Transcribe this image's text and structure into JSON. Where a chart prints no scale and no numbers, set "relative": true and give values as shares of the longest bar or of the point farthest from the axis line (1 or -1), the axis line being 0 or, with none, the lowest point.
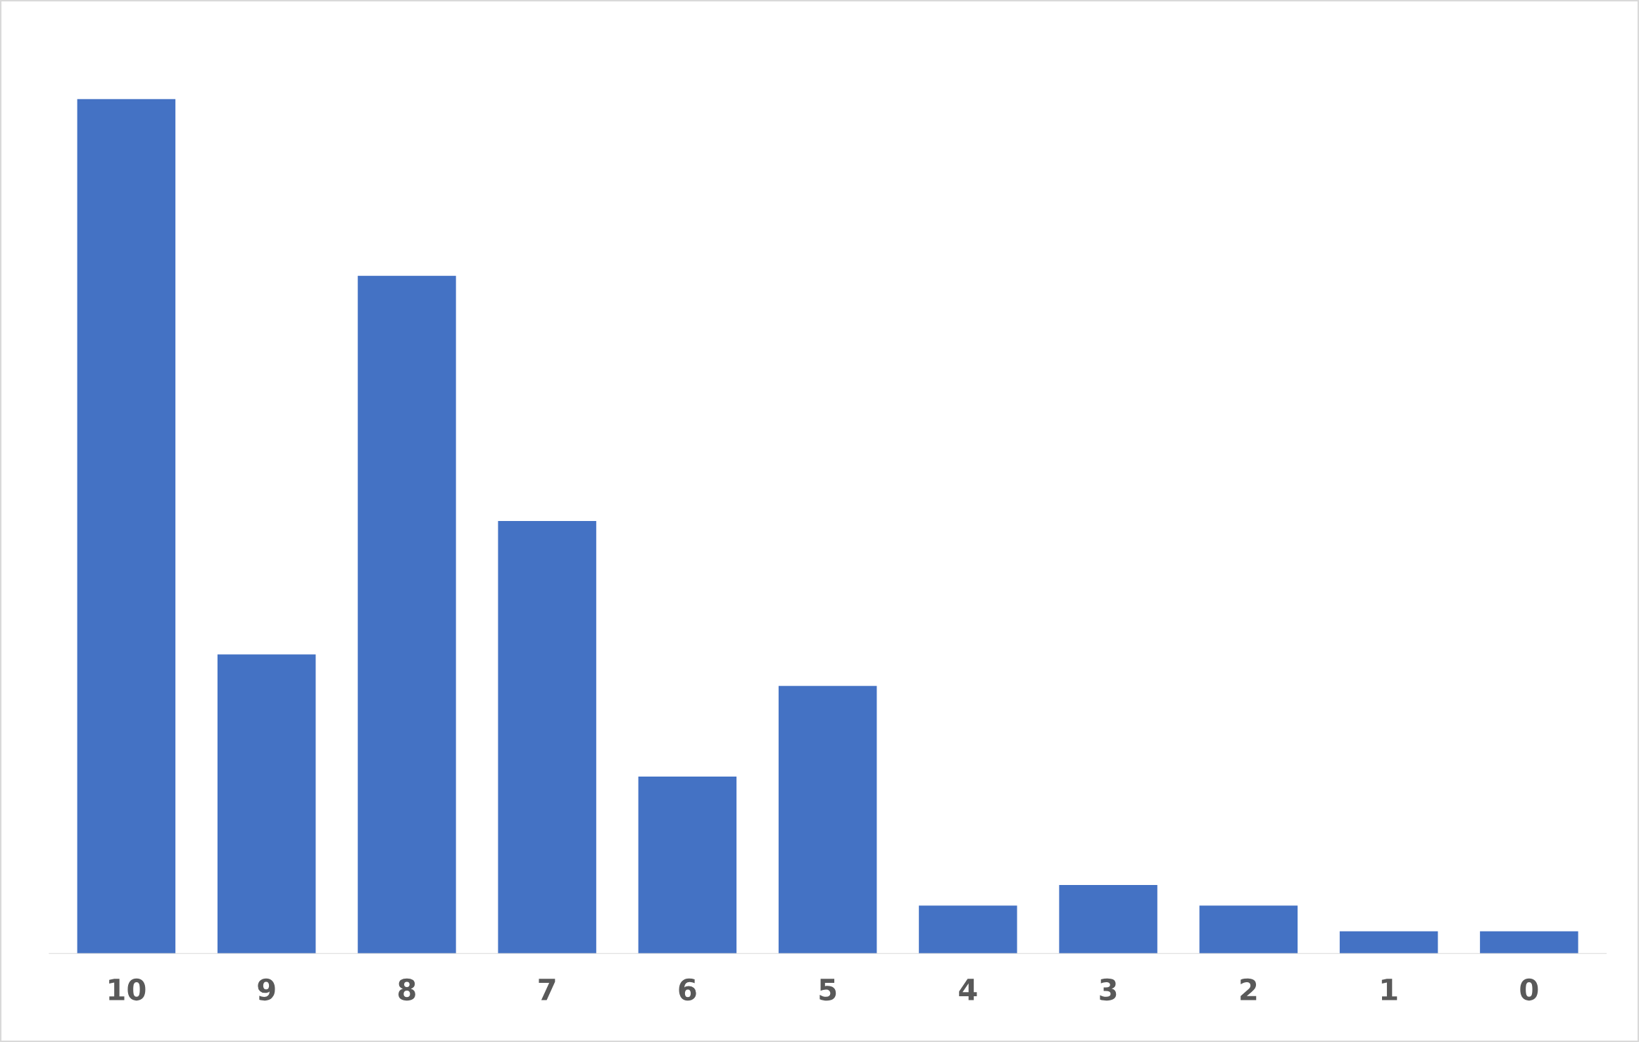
{
  "chart_data": {
    "type": "bar",
    "relative": true,
    "categories": [
      "10",
      "9",
      "8",
      "7",
      "6",
      "5",
      "4",
      "3",
      "2",
      "1",
      "0"
    ],
    "values": [
      1,
      0.35,
      0.793,
      0.506,
      0.207,
      0.313,
      0.056,
      0.08,
      0.056,
      0.026,
      0.026
    ],
    "color": "#4472c4",
    "grid": false,
    "legend": false
  }
}
